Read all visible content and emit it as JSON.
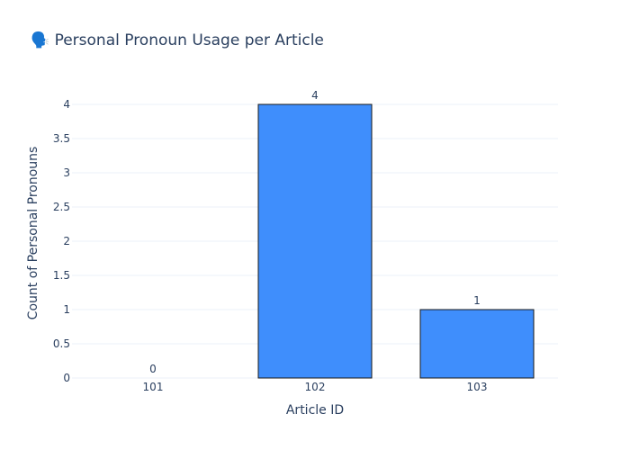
{
  "chart_data": {
    "type": "bar",
    "title": "🗣️ Personal Pronoun Usage per Article",
    "xlabel": "Article ID",
    "ylabel": "Count of Personal Pronouns",
    "categories": [
      "101",
      "102",
      "103"
    ],
    "values": [
      0,
      4,
      1
    ],
    "data_labels": [
      "0",
      "4",
      "1"
    ],
    "ylim": [
      0,
      4.2
    ],
    "yticks": [
      0,
      0.5,
      1,
      1.5,
      2,
      2.5,
      3,
      3.5,
      4
    ],
    "ytick_labels": [
      "0",
      "0.5",
      "1",
      "1.5",
      "2",
      "2.5",
      "3",
      "3.5",
      "4"
    ],
    "grid": true,
    "legend": "none",
    "colors": {
      "bar_fill": "#3f8efc",
      "bar_stroke": "#1a1a1a",
      "grid": "#ebf0f8",
      "text": "#2a3f5f"
    }
  }
}
